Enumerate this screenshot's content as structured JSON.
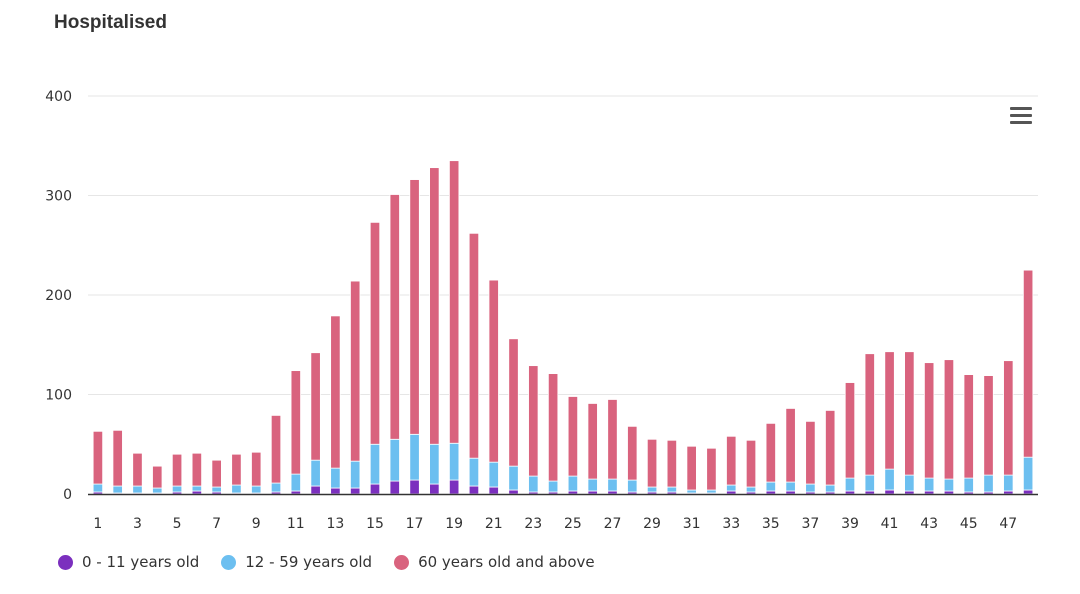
{
  "chart_data": {
    "type": "bar",
    "stacked": true,
    "title": "Hospitalised",
    "xlabel": "",
    "ylabel": "",
    "ylim": [
      0,
      400
    ],
    "yticks": [
      0,
      100,
      200,
      300,
      400
    ],
    "grid": true,
    "legend_position": "bottom-left",
    "categories": [
      1,
      2,
      3,
      4,
      5,
      6,
      7,
      8,
      9,
      10,
      11,
      12,
      13,
      14,
      15,
      16,
      17,
      18,
      19,
      20,
      21,
      22,
      23,
      24,
      25,
      26,
      27,
      28,
      29,
      30,
      31,
      32,
      33,
      34,
      35,
      36,
      37,
      38,
      39,
      40,
      41,
      42,
      43,
      44,
      45,
      46,
      47,
      48
    ],
    "xtick_labels": [
      "1",
      "3",
      "5",
      "7",
      "9",
      "11",
      "13",
      "15",
      "17",
      "19",
      "21",
      "23",
      "25",
      "27",
      "29",
      "31",
      "33",
      "35",
      "37",
      "39",
      "41",
      "43",
      "45",
      "47"
    ],
    "series": [
      {
        "name": "0 - 11 years old",
        "color": "#7b2fbe",
        "values": [
          2,
          1,
          1,
          1,
          2,
          3,
          2,
          1,
          1,
          2,
          3,
          8,
          6,
          6,
          10,
          13,
          14,
          10,
          14,
          8,
          7,
          4,
          2,
          2,
          3,
          3,
          3,
          2,
          2,
          2,
          1,
          1,
          3,
          2,
          3,
          3,
          2,
          2,
          3,
          3,
          4,
          3,
          3,
          3,
          2,
          2,
          3,
          4
        ]
      },
      {
        "name": "12 - 59 years old",
        "color": "#6cbff0",
        "values": [
          8,
          7,
          7,
          5,
          6,
          5,
          5,
          8,
          7,
          9,
          17,
          26,
          20,
          27,
          40,
          42,
          46,
          40,
          37,
          28,
          25,
          24,
          16,
          11,
          15,
          12,
          12,
          12,
          5,
          5,
          3,
          3,
          6,
          5,
          9,
          9,
          8,
          7,
          13,
          16,
          21,
          16,
          13,
          12,
          14,
          17,
          16,
          33
        ]
      },
      {
        "name": "60 years old and above",
        "color": "#d9637e",
        "values": [
          53,
          56,
          33,
          22,
          32,
          33,
          27,
          31,
          34,
          68,
          104,
          108,
          153,
          181,
          223,
          246,
          256,
          278,
          284,
          226,
          183,
          128,
          111,
          108,
          80,
          76,
          80,
          54,
          48,
          47,
          44,
          42,
          49,
          47,
          59,
          74,
          63,
          75,
          96,
          122,
          118,
          124,
          116,
          120,
          104,
          100,
          115,
          188
        ]
      }
    ]
  }
}
